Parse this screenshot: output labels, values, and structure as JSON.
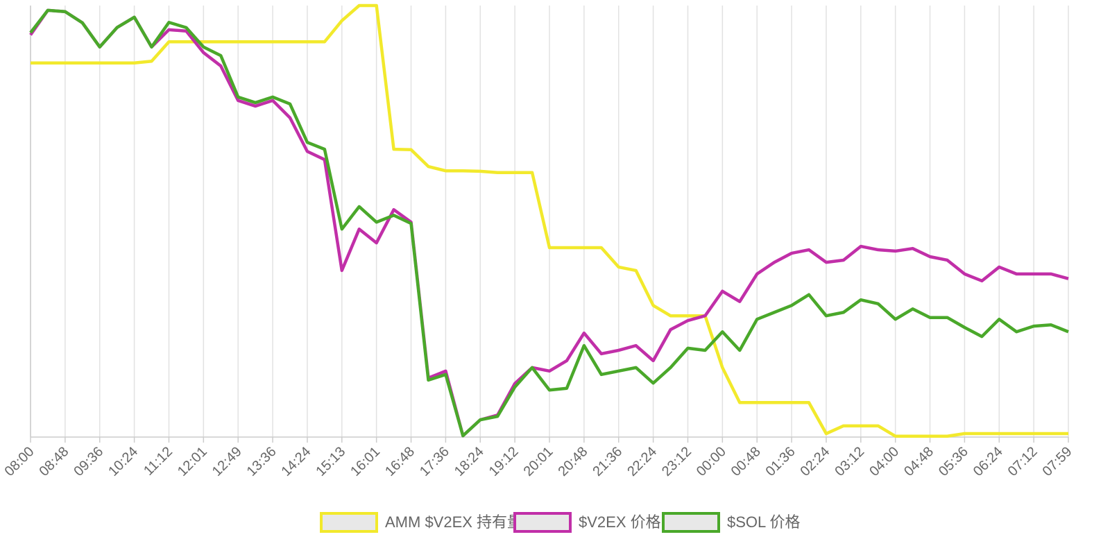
{
  "chart_data": {
    "type": "line",
    "categories": [
      "08:00",
      null,
      "08:48",
      null,
      "09:36",
      null,
      "10:24",
      null,
      "11:12",
      null,
      "12:01",
      null,
      "12:49",
      null,
      "13:36",
      null,
      "14:24",
      null,
      "15:13",
      null,
      "16:01",
      null,
      "16:48",
      null,
      "17:36",
      null,
      "18:24",
      null,
      "19:12",
      null,
      "20:01",
      null,
      "20:48",
      null,
      "21:36",
      null,
      "22:24",
      null,
      "23:12",
      null,
      "00:00",
      null,
      "00:48",
      null,
      "01:36",
      null,
      "02:24",
      null,
      "03:12",
      null,
      "04:00",
      null,
      "04:48",
      null,
      "05:36",
      null,
      "06:24",
      null,
      "07:12",
      null,
      "07:59"
    ],
    "series": [
      {
        "name": "AMM $V2EX 持有量",
        "color": "#f2e92c",
        "values": [
          86.7,
          86.7,
          86.7,
          86.7,
          86.7,
          86.7,
          86.7,
          87.1,
          91.6,
          91.6,
          91.6,
          91.6,
          91.6,
          91.6,
          91.6,
          91.6,
          91.6,
          91.6,
          96.5,
          100,
          100,
          66.7,
          66.6,
          62.7,
          61.7,
          61.7,
          61.6,
          61.3,
          61.3,
          61.3,
          43.9,
          43.9,
          43.9,
          43.9,
          39.4,
          38.6,
          30.5,
          28.1,
          28.1,
          28.1,
          16.1,
          8.0,
          8.0,
          8.0,
          8.0,
          8.0,
          0.8,
          2.6,
          2.6,
          2.6,
          0.2,
          0.2,
          0.2,
          0.2,
          0.8,
          0.8,
          0.8,
          0.8,
          0.8,
          0.8,
          0.8
        ]
      },
      {
        "name": "$V2EX 价格",
        "color": "#c12fa8",
        "values": [
          93.2,
          98.9,
          98.6,
          96.0,
          90.4,
          94.9,
          97.3,
          90.4,
          94.4,
          94.1,
          89.1,
          86.0,
          78.0,
          76.7,
          78.0,
          74.0,
          66.2,
          64.3,
          38.6,
          48.2,
          45.0,
          52.7,
          49.8,
          13.7,
          15.3,
          0.3,
          4.0,
          5.1,
          12.4,
          16.1,
          15.3,
          17.7,
          24.1,
          19.3,
          20.1,
          21.2,
          17.7,
          24.9,
          27.0,
          28.1,
          33.8,
          31.4,
          37.8,
          40.5,
          42.6,
          43.4,
          40.5,
          41.0,
          44.2,
          43.4,
          43.1,
          43.7,
          41.8,
          41.0,
          37.8,
          36.2,
          39.4,
          37.8,
          37.8,
          37.8,
          36.7
        ]
      },
      {
        "name": "$SOL 价格",
        "color": "#4aa82a",
        "values": [
          93.7,
          98.9,
          98.6,
          96.0,
          90.4,
          94.9,
          97.3,
          90.4,
          96.1,
          94.9,
          90.4,
          88.4,
          78.8,
          77.5,
          78.8,
          77.2,
          68.3,
          66.7,
          48.2,
          53.4,
          49.8,
          51.4,
          49.5,
          13.2,
          14.5,
          0.3,
          4.0,
          4.8,
          11.6,
          16.1,
          10.9,
          11.3,
          21.2,
          14.5,
          15.3,
          16.1,
          12.5,
          16.1,
          20.6,
          20.1,
          24.4,
          20.1,
          27.3,
          28.9,
          30.5,
          33.0,
          28.1,
          28.9,
          31.8,
          30.9,
          27.3,
          29.7,
          27.7,
          27.7,
          25.4,
          23.3,
          27.3,
          24.4,
          25.7,
          26.0,
          24.4
        ]
      }
    ],
    "ylim": [
      0,
      100
    ],
    "grid": true
  }
}
